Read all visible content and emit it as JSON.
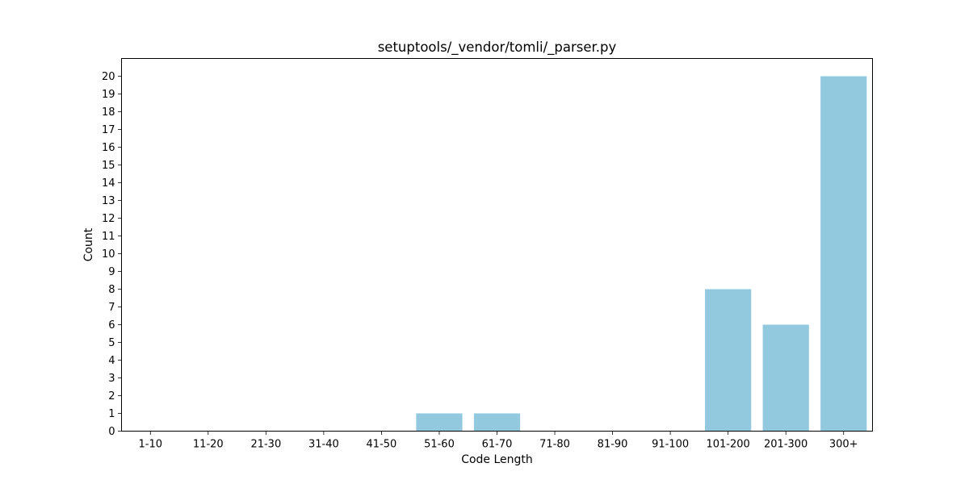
{
  "chart_data": {
    "type": "bar",
    "title": "setuptools/_vendor/tomli/_parser.py",
    "xlabel": "Code Length",
    "ylabel": "Count",
    "categories": [
      "1-10",
      "11-20",
      "21-30",
      "31-40",
      "41-50",
      "51-60",
      "61-70",
      "71-80",
      "81-90",
      "91-100",
      "101-200",
      "201-300",
      "300+"
    ],
    "values": [
      0,
      0,
      0,
      0,
      0,
      1,
      1,
      0,
      0,
      0,
      8,
      6,
      20
    ],
    "ylim": [
      0,
      21
    ],
    "yticks": [
      0,
      1,
      2,
      3,
      4,
      5,
      6,
      7,
      8,
      9,
      10,
      11,
      12,
      13,
      14,
      15,
      16,
      17,
      18,
      19,
      20
    ],
    "grid": false,
    "bar_color": "#92C9DE"
  }
}
